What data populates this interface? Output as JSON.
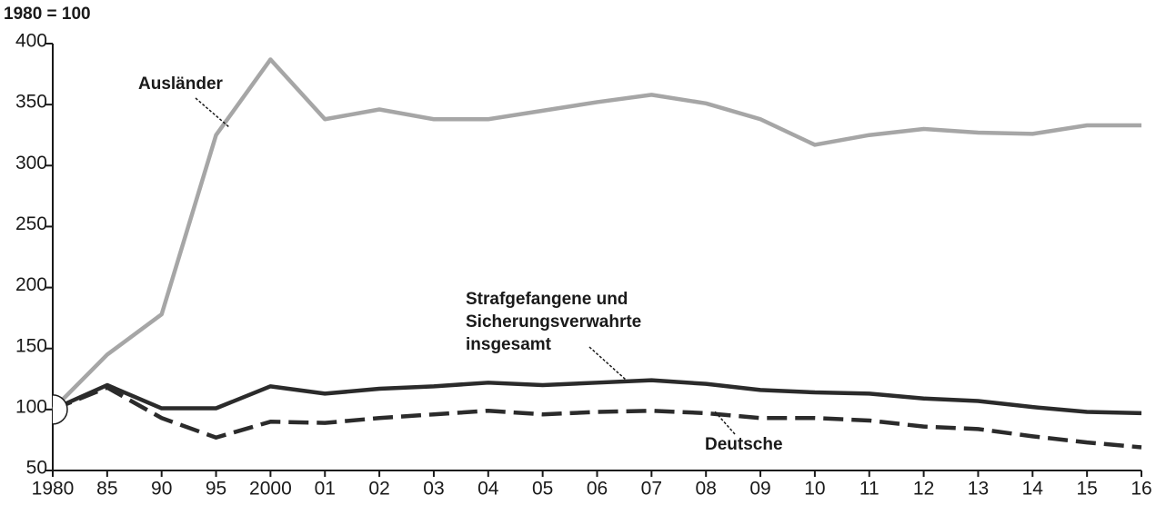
{
  "chart_data": {
    "type": "line",
    "unit_label": "1980 = 100",
    "categories": [
      "1980",
      "85",
      "90",
      "95",
      "2000",
      "01",
      "02",
      "03",
      "04",
      "05",
      "06",
      "07",
      "08",
      "09",
      "10",
      "11",
      "12",
      "13",
      "14",
      "15",
      "16"
    ],
    "series": [
      {
        "name": [
          "Ausländer"
        ],
        "color": "#a6a6a6",
        "dash": "none",
        "values": [
          100,
          145,
          178,
          325,
          387,
          338,
          346,
          338,
          338,
          345,
          352,
          358,
          351,
          338,
          317,
          325,
          330,
          327,
          326,
          333,
          333
        ]
      },
      {
        "name": [
          "Strafgefangene und",
          "Sicherungsverwahrte",
          "insgesamt"
        ],
        "color": "#2b2b2b",
        "dash": "none",
        "values": [
          100,
          120,
          101,
          101,
          119,
          113,
          117,
          119,
          122,
          120,
          122,
          124,
          121,
          116,
          114,
          113,
          109,
          107,
          102,
          98,
          97
        ]
      },
      {
        "name": [
          "Deutsche"
        ],
        "color": "#2b2b2b",
        "dash": "22 9",
        "values": [
          100,
          118,
          93,
          77,
          90,
          89,
          93,
          96,
          99,
          96,
          98,
          99,
          97,
          93,
          93,
          91,
          86,
          84,
          78,
          73,
          69
        ]
      }
    ],
    "ylim": [
      50,
      400
    ],
    "yticks": [
      50,
      100,
      150,
      200,
      250,
      300,
      350,
      400
    ]
  }
}
